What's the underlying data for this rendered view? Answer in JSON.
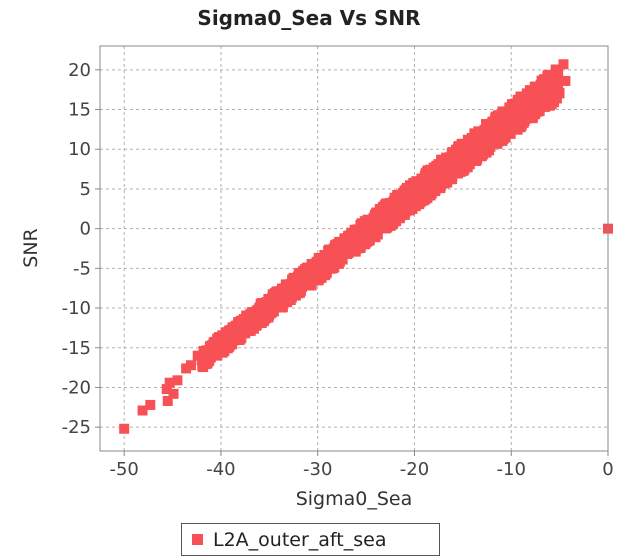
{
  "chart_data": {
    "type": "scatter",
    "title": "Sigma0_Sea Vs SNR",
    "xlabel": "Sigma0_Sea",
    "ylabel": "SNR",
    "xlim": [
      -52.5,
      0
    ],
    "ylim": [
      -28,
      23
    ],
    "xticks": [
      -50,
      -40,
      -30,
      -20,
      -10,
      0
    ],
    "yticks": [
      -25,
      -20,
      -15,
      -10,
      -5,
      0,
      5,
      10,
      15,
      20
    ],
    "grid": true,
    "legend_position": "bottom-center",
    "series": [
      {
        "name": "L2A_outer_aft_sea",
        "color": "#f75055",
        "marker": "square",
        "dense_band": {
          "x_range": [
            -42,
            -5
          ],
          "y_at_x_start": -16.5,
          "y_at_x_end": 18.5,
          "band_half_width": 1.6
        },
        "points": [
          [
            -50.0,
            -25.2
          ],
          [
            -48.1,
            -22.9
          ],
          [
            -47.3,
            -22.2
          ],
          [
            -45.5,
            -21.7
          ],
          [
            -45.6,
            -20.2
          ],
          [
            -44.9,
            -20.8
          ],
          [
            -45.3,
            -19.4
          ],
          [
            -44.5,
            -19.1
          ],
          [
            -43.6,
            -17.6
          ],
          [
            -43.1,
            -17.2
          ],
          [
            -42.4,
            -16.0
          ],
          [
            -41.8,
            -15.4
          ],
          [
            -41.6,
            -16.6
          ],
          [
            -40.8,
            -15.6
          ],
          [
            -4.6,
            20.7
          ],
          [
            -5.3,
            19.9
          ],
          [
            -5.9,
            17.8
          ],
          [
            -4.4,
            18.6
          ],
          [
            0.0,
            0.0
          ]
        ]
      }
    ]
  }
}
